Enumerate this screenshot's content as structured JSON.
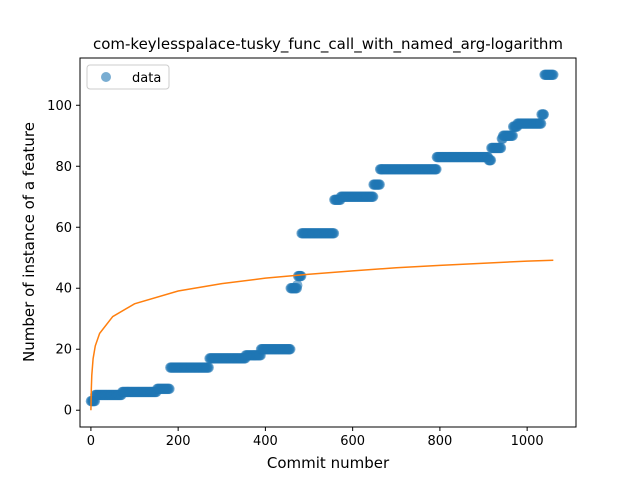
{
  "chart_data": {
    "type": "scatter",
    "title": "com-keylesspalace-tusky_func_call_with_named_arg-logarithm",
    "xlabel": "Commit number",
    "ylabel": "Number of instance of a feature",
    "xlim": [
      -25,
      1112
    ],
    "ylim": [
      -5.5,
      115.5
    ],
    "xticks": [
      0,
      200,
      400,
      600,
      800,
      1000
    ],
    "yticks": [
      0,
      20,
      40,
      60,
      80,
      100
    ],
    "legend": {
      "position": "top-left",
      "entries": [
        "data"
      ]
    },
    "grid": false,
    "colors": {
      "data": "#1f77b4",
      "fit": "#ff7f0e"
    },
    "series": [
      {
        "name": "data",
        "kind": "scatter",
        "steps": [
          [
            0,
            3
          ],
          [
            5,
            3
          ],
          [
            10,
            5
          ],
          [
            70,
            5
          ],
          [
            72,
            6
          ],
          [
            150,
            6
          ],
          [
            152,
            7
          ],
          [
            180,
            7
          ],
          [
            182,
            14
          ],
          [
            270,
            14
          ],
          [
            272,
            17
          ],
          [
            350,
            17
          ],
          [
            355,
            18
          ],
          [
            385,
            18
          ],
          [
            390,
            20
          ],
          [
            455,
            20
          ],
          [
            458,
            40
          ],
          [
            470,
            40
          ],
          [
            473,
            41
          ],
          [
            475,
            44
          ],
          [
            480,
            44
          ],
          [
            483,
            58
          ],
          [
            555,
            58
          ],
          [
            558,
            69
          ],
          [
            570,
            69
          ],
          [
            573,
            70
          ],
          [
            645,
            70
          ],
          [
            648,
            74
          ],
          [
            660,
            74
          ],
          [
            663,
            79
          ],
          [
            790,
            79
          ],
          [
            793,
            83
          ],
          [
            910,
            83
          ],
          [
            912,
            82
          ],
          [
            915,
            82
          ],
          [
            918,
            86
          ],
          [
            940,
            86
          ],
          [
            942,
            89
          ],
          [
            945,
            90
          ],
          [
            965,
            90
          ],
          [
            968,
            93
          ],
          [
            975,
            93
          ],
          [
            978,
            94
          ],
          [
            1030,
            94
          ],
          [
            1033,
            97
          ],
          [
            1038,
            97
          ],
          [
            1040,
            110
          ],
          [
            1060,
            110
          ]
        ]
      },
      {
        "name": "",
        "kind": "line",
        "model": "logarithm",
        "x": [
          0,
          1,
          2,
          5,
          10,
          20,
          50,
          100,
          200,
          300,
          400,
          500,
          600,
          700,
          800,
          900,
          1000,
          1060
        ],
        "y": [
          0,
          7.2,
          11.4,
          16.9,
          21.1,
          25.2,
          30.7,
          34.9,
          39.1,
          41.5,
          43.3,
          44.6,
          45.7,
          46.7,
          47.5,
          48.2,
          48.9,
          49.2
        ]
      }
    ]
  }
}
